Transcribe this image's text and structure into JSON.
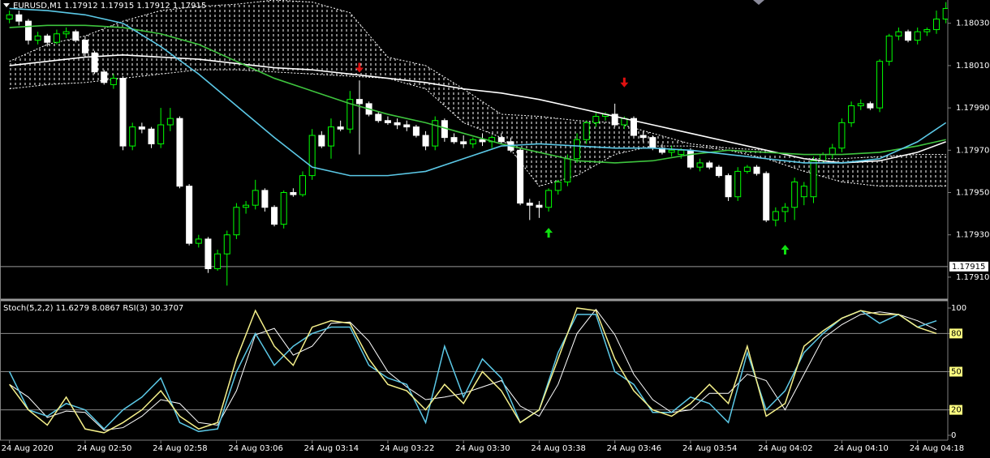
{
  "chart_data": [
    {
      "type": "candlestick",
      "title": "EURUSD,M1  1.17912 1.17915 1.17912 1.17915",
      "xlim": [
        -1,
        99.2
      ],
      "ylim": [
        1.179,
        1.18041
      ],
      "yticks": [
        {
          "value": 1.1803,
          "label": "1.18030"
        },
        {
          "value": 1.1801,
          "label": "1.18010"
        },
        {
          "value": 1.1799,
          "label": "1.17990"
        },
        {
          "value": 1.1797,
          "label": "1.17970"
        },
        {
          "value": 1.1795,
          "label": "1.17950"
        },
        {
          "value": 1.1793,
          "label": "1.17930"
        },
        {
          "value": 1.1791,
          "label": "1.17910"
        }
      ],
      "xticks": [
        {
          "value": 0,
          "label": "24 Aug 2020"
        },
        {
          "value": 8,
          "label": "24 Aug 02:50"
        },
        {
          "value": 16,
          "label": "24 Aug 02:58"
        },
        {
          "value": 24,
          "label": "24 Aug 03:06"
        },
        {
          "value": 32,
          "label": "24 Aug 03:14"
        },
        {
          "value": 40,
          "label": "24 Aug 03:22"
        },
        {
          "value": 48,
          "label": "24 Aug 03:30"
        },
        {
          "value": 56,
          "label": "24 Aug 03:38"
        },
        {
          "value": 64,
          "label": "24 Aug 03:46"
        },
        {
          "value": 72,
          "label": "24 Aug 03:54"
        },
        {
          "value": 80,
          "label": "24 Aug 04:02"
        },
        {
          "value": 88,
          "label": "24 Aug 04:10"
        },
        {
          "value": 96,
          "label": "24 Aug 04:18"
        }
      ],
      "bid": 1.17915,
      "bull_color": "#00ff00",
      "bear_color": "#ffffff",
      "ohlc": [
        [
          1.18032,
          1.18036,
          1.1803,
          1.18034
        ],
        [
          1.18034,
          1.18036,
          1.18029,
          1.18031
        ],
        [
          1.18031,
          1.18032,
          1.1802,
          1.18022
        ],
        [
          1.18022,
          1.18026,
          1.1802,
          1.18024
        ],
        [
          1.18024,
          1.18025,
          1.18019,
          1.18021
        ],
        [
          1.18021,
          1.18027,
          1.1802,
          1.18025
        ],
        [
          1.18025,
          1.18028,
          1.18023,
          1.18026
        ],
        [
          1.18026,
          1.18027,
          1.18021,
          1.18022
        ],
        [
          1.18022,
          1.18024,
          1.18014,
          1.18016
        ],
        [
          1.18016,
          1.18017,
          1.18006,
          1.18007
        ],
        [
          1.18007,
          1.18008,
          1.18001,
          1.18002
        ],
        [
          1.18001,
          1.18006,
          1.17999,
          1.18004
        ],
        [
          1.18004,
          1.18005,
          1.1797,
          1.17972
        ],
        [
          1.17972,
          1.17983,
          1.1797,
          1.17981
        ],
        [
          1.17981,
          1.17983,
          1.17978,
          1.1798
        ],
        [
          1.1798,
          1.17981,
          1.17971,
          1.17973
        ],
        [
          1.17973,
          1.1799,
          1.17971,
          1.17982
        ],
        [
          1.17982,
          1.1799,
          1.17979,
          1.17985
        ],
        [
          1.17985,
          1.17986,
          1.17952,
          1.17953
        ],
        [
          1.17953,
          1.17954,
          1.17925,
          1.17926
        ],
        [
          1.17926,
          1.1793,
          1.17924,
          1.17928
        ],
        [
          1.17928,
          1.17929,
          1.17912,
          1.17914
        ],
        [
          1.17914,
          1.17923,
          1.17913,
          1.17921
        ],
        [
          1.17921,
          1.17932,
          1.17906,
          1.1793
        ],
        [
          1.1793,
          1.17945,
          1.17928,
          1.17943
        ],
        [
          1.17943,
          1.17946,
          1.1794,
          1.17944
        ],
        [
          1.17944,
          1.17956,
          1.17942,
          1.17951
        ],
        [
          1.17951,
          1.17952,
          1.17941,
          1.17943
        ],
        [
          1.17943,
          1.17944,
          1.17934,
          1.17935
        ],
        [
          1.17935,
          1.17951,
          1.17933,
          1.1795
        ],
        [
          1.1795,
          1.17952,
          1.17948,
          1.17949
        ],
        [
          1.17949,
          1.1796,
          1.17948,
          1.17958
        ],
        [
          1.17958,
          1.1798,
          1.17956,
          1.17977
        ],
        [
          1.17977,
          1.17979,
          1.17971,
          1.17972
        ],
        [
          1.17972,
          1.17985,
          1.17966,
          1.17981
        ],
        [
          1.17981,
          1.17984,
          1.17979,
          1.1798
        ],
        [
          1.1798,
          1.17998,
          1.17978,
          1.17994
        ],
        [
          1.17994,
          1.18003,
          1.17968,
          1.17992
        ],
        [
          1.17992,
          1.17993,
          1.17986,
          1.17987
        ],
        [
          1.17987,
          1.17988,
          1.17983,
          1.17984
        ],
        [
          1.17984,
          1.17986,
          1.17982,
          1.17983
        ],
        [
          1.17983,
          1.17985,
          1.1798,
          1.17982
        ],
        [
          1.17982,
          1.17984,
          1.17979,
          1.17981
        ],
        [
          1.17981,
          1.17982,
          1.17976,
          1.17977
        ],
        [
          1.17977,
          1.17979,
          1.1797,
          1.17972
        ],
        [
          1.17972,
          1.17986,
          1.1797,
          1.17984
        ],
        [
          1.17984,
          1.17985,
          1.17974,
          1.17976
        ],
        [
          1.17976,
          1.17978,
          1.17973,
          1.17974
        ],
        [
          1.17974,
          1.17977,
          1.17971,
          1.17973
        ],
        [
          1.17973,
          1.17976,
          1.17971,
          1.17975
        ],
        [
          1.17975,
          1.17978,
          1.17972,
          1.17974
        ],
        [
          1.17974,
          1.17977,
          1.17971,
          1.17976
        ],
        [
          1.17976,
          1.17978,
          1.17973,
          1.17974
        ],
        [
          1.17974,
          1.17976,
          1.17969,
          1.1797
        ],
        [
          1.1797,
          1.17971,
          1.17944,
          1.17945
        ],
        [
          1.17945,
          1.17947,
          1.17937,
          1.17944
        ],
        [
          1.17944,
          1.17946,
          1.17938,
          1.17943
        ],
        [
          1.17943,
          1.17952,
          1.17941,
          1.17951
        ],
        [
          1.17951,
          1.17956,
          1.17949,
          1.17955
        ],
        [
          1.17955,
          1.17968,
          1.17953,
          1.17966
        ],
        [
          1.17966,
          1.17978,
          1.17964,
          1.17975
        ],
        [
          1.17975,
          1.17984,
          1.17973,
          1.17983
        ],
        [
          1.17983,
          1.17988,
          1.17981,
          1.17986
        ],
        [
          1.17986,
          1.17988,
          1.17984,
          1.17987
        ],
        [
          1.17987,
          1.17992,
          1.17981,
          1.17982
        ],
        [
          1.17982,
          1.17986,
          1.1798,
          1.17985
        ],
        [
          1.17985,
          1.17986,
          1.17976,
          1.17977
        ],
        [
          1.17977,
          1.17979,
          1.17974,
          1.17976
        ],
        [
          1.17976,
          1.17977,
          1.1797,
          1.17971
        ],
        [
          1.17971,
          1.17973,
          1.17968,
          1.17969
        ],
        [
          1.17969,
          1.17972,
          1.17967,
          1.1797
        ],
        [
          1.17968,
          1.17971,
          1.17966,
          1.1797
        ],
        [
          1.1797,
          1.17971,
          1.17961,
          1.17962
        ],
        [
          1.17962,
          1.17966,
          1.1796,
          1.17964
        ],
        [
          1.17964,
          1.17965,
          1.17961,
          1.17962
        ],
        [
          1.17962,
          1.17963,
          1.17957,
          1.17958
        ],
        [
          1.17958,
          1.17959,
          1.17946,
          1.17948
        ],
        [
          1.17948,
          1.17962,
          1.17946,
          1.1796
        ],
        [
          1.1796,
          1.17963,
          1.17959,
          1.17962
        ],
        [
          1.17962,
          1.17963,
          1.17958,
          1.17959
        ],
        [
          1.17959,
          1.1796,
          1.17936,
          1.17937
        ],
        [
          1.17937,
          1.17943,
          1.17934,
          1.17941
        ],
        [
          1.17941,
          1.17945,
          1.17936,
          1.17943
        ],
        [
          1.17943,
          1.17957,
          1.17937,
          1.17955
        ],
        [
          1.17948,
          1.17955,
          1.17944,
          1.17953
        ],
        [
          1.17948,
          1.17967,
          1.17945,
          1.17965
        ],
        [
          1.17965,
          1.17969,
          1.17964,
          1.17968
        ],
        [
          1.17968,
          1.17973,
          1.17966,
          1.17971
        ],
        [
          1.17971,
          1.17985,
          1.17969,
          1.17983
        ],
        [
          1.17983,
          1.17993,
          1.17981,
          1.17991
        ],
        [
          1.17991,
          1.17994,
          1.17989,
          1.17992
        ],
        [
          1.17992,
          1.17993,
          1.17989,
          1.1799
        ],
        [
          1.1799,
          1.18013,
          1.17988,
          1.18012
        ],
        [
          1.18012,
          1.18025,
          1.1801,
          1.18024
        ],
        [
          1.18024,
          1.18028,
          1.18022,
          1.18026
        ],
        [
          1.18026,
          1.18027,
          1.18021,
          1.18022
        ],
        [
          1.18022,
          1.18028,
          1.1802,
          1.18026
        ],
        [
          1.18026,
          1.18028,
          1.18024,
          1.18027
        ],
        [
          1.18027,
          1.18036,
          1.18025,
          1.18032
        ],
        [
          1.18032,
          1.1804,
          1.1803,
          1.18037
        ]
      ],
      "line_x": [
        0,
        4,
        8,
        12,
        16,
        20,
        24,
        28,
        32,
        36,
        40,
        44,
        48,
        52,
        56,
        60,
        64,
        68,
        72,
        76,
        80,
        84,
        88,
        92,
        96,
        99
      ],
      "cloud": {
        "color": "#ffffff",
        "upper": [
          1.18012,
          1.1802,
          1.18024,
          1.18031,
          1.18036,
          1.18038,
          1.18039,
          1.18041,
          1.1804,
          1.18035,
          1.18014,
          1.1801,
          1.17999,
          1.17987,
          1.17986,
          1.17984,
          1.17983,
          1.17978,
          1.17973,
          1.17971,
          1.1797,
          1.17966,
          1.17966,
          1.17967,
          1.17968,
          1.17968
        ],
        "lower": [
          1.17999,
          1.18001,
          1.18002,
          1.18004,
          1.18006,
          1.18008,
          1.18008,
          1.18007,
          1.18006,
          1.18005,
          1.18004,
          1.17999,
          1.17983,
          1.17976,
          1.17953,
          1.17958,
          1.17968,
          1.17972,
          1.17972,
          1.1797,
          1.17966,
          1.1796,
          1.17955,
          1.17953,
          1.17953,
          1.17953
        ]
      },
      "lines": [
        {
          "color": "#ffffff",
          "values": [
            1.1801,
            1.18012,
            1.18014,
            1.18015,
            1.18014,
            1.18013,
            1.18011,
            1.18009,
            1.18008,
            1.18006,
            1.18004,
            1.18002,
            1.17999,
            1.17997,
            1.17994,
            1.1799,
            1.17986,
            1.17982,
            1.17978,
            1.17974,
            1.1797,
            1.17966,
            1.17964,
            1.17965,
            1.17969,
            1.17974
          ]
        },
        {
          "color": "#3ec43e",
          "values": [
            1.18028,
            1.18029,
            1.18029,
            1.18028,
            1.18025,
            1.1802,
            1.18012,
            1.18004,
            1.17998,
            1.17992,
            1.17987,
            1.17983,
            1.17978,
            1.17973,
            1.17969,
            1.17965,
            1.17964,
            1.17965,
            1.17968,
            1.1797,
            1.17969,
            1.17968,
            1.17968,
            1.17969,
            1.17972,
            1.17975
          ]
        },
        {
          "color": "#5bc8e6",
          "values": [
            1.18037,
            1.18036,
            1.18034,
            1.1803,
            1.18019,
            1.18006,
            1.17991,
            1.17976,
            1.17962,
            1.17958,
            1.17958,
            1.1796,
            1.17966,
            1.17972,
            1.17973,
            1.17972,
            1.17971,
            1.17971,
            1.1797,
            1.17968,
            1.17966,
            1.17964,
            1.17964,
            1.17966,
            1.17974,
            1.17983
          ]
        }
      ],
      "signals": [
        {
          "x": 37,
          "y": 1.18009,
          "direction": "down",
          "color": "#e01010"
        },
        {
          "x": 65,
          "y": 1.18002,
          "direction": "down",
          "color": "#e01010"
        },
        {
          "x": 57,
          "y": 1.17931,
          "direction": "up",
          "color": "#10e010"
        },
        {
          "x": 82,
          "y": 1.17923,
          "direction": "up",
          "color": "#10e010"
        }
      ]
    },
    {
      "type": "line",
      "title": "Stoch(5,2,2) 11.6279 8.0867  RSI(3) 30.3707",
      "xlim": [
        -1,
        99.2
      ],
      "ylim": [
        0,
        100
      ],
      "yticks": [
        0,
        20,
        50,
        80,
        100
      ],
      "levels": [
        20,
        50,
        80
      ],
      "level_color": "#ffff80",
      "x": [
        0,
        2,
        4,
        6,
        8,
        10,
        12,
        14,
        16,
        18,
        20,
        22,
        24,
        26,
        28,
        30,
        32,
        34,
        36,
        38,
        40,
        42,
        44,
        46,
        48,
        50,
        52,
        54,
        56,
        58,
        60,
        62,
        64,
        66,
        68,
        70,
        72,
        74,
        76,
        78,
        80,
        82,
        84,
        86,
        88,
        90,
        92,
        94,
        96,
        98
      ],
      "series": [
        {
          "color": "#ffffff",
          "values": [
            40,
            30,
            14,
            19,
            18,
            4,
            6,
            15,
            28,
            25,
            10,
            8,
            35,
            79,
            84,
            63,
            70,
            88,
            89,
            74,
            50,
            38,
            28,
            30,
            33,
            38,
            43,
            23,
            15,
            40,
            80,
            99,
            79,
            48,
            28,
            18,
            20,
            33,
            33,
            48,
            43,
            20,
            48,
            76,
            87,
            95,
            97,
            95,
            90,
            83
          ]
        },
        {
          "color": "#5bc8e6",
          "values": [
            50,
            20,
            15,
            25,
            20,
            5,
            20,
            30,
            45,
            10,
            3,
            5,
            50,
            80,
            55,
            70,
            80,
            85,
            85,
            55,
            45,
            40,
            10,
            70,
            30,
            60,
            45,
            10,
            20,
            65,
            95,
            95,
            50,
            40,
            18,
            18,
            30,
            25,
            10,
            65,
            20,
            35,
            65,
            80,
            92,
            98,
            88,
            95,
            85,
            90
          ]
        },
        {
          "color": "#f5f08a",
          "values": [
            40,
            20,
            8,
            30,
            5,
            2,
            10,
            20,
            35,
            15,
            5,
            10,
            60,
            98,
            70,
            55,
            85,
            90,
            88,
            60,
            40,
            35,
            20,
            40,
            25,
            50,
            35,
            10,
            20,
            60,
            100,
            98,
            60,
            35,
            20,
            15,
            25,
            40,
            25,
            70,
            15,
            25,
            70,
            82,
            92,
            98,
            95,
            95,
            85,
            80
          ]
        }
      ]
    }
  ]
}
